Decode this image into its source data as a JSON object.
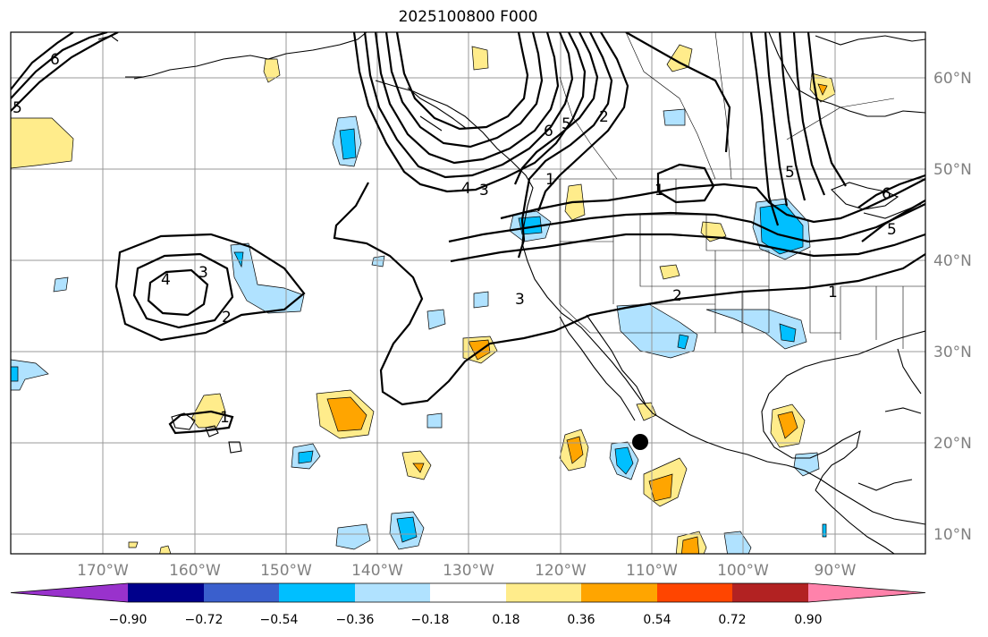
{
  "title": "2025100800 F000",
  "map": {
    "lat_labels": [
      "60°N",
      "50°N",
      "40°N",
      "30°N",
      "20°N",
      "10°N"
    ],
    "lon_labels": [
      "170°W",
      "160°W",
      "150°W",
      "140°W",
      "130°W",
      "120°W",
      "110°W",
      "100°W",
      "90°W"
    ],
    "contour_labels": [
      "6",
      "5",
      "2",
      "4",
      "3",
      "6",
      "5",
      "2",
      "1",
      "1",
      "5",
      "6",
      "4",
      "3",
      "2",
      "1",
      "3",
      "2",
      "1",
      "5"
    ],
    "marker": "black-dot"
  },
  "colorbar": {
    "labels": [
      "−0.90",
      "−0.72",
      "−0.54",
      "−0.36",
      "−0.18",
      "0.18",
      "0.36",
      "0.54",
      "0.72",
      "0.90"
    ],
    "colors": [
      "#9932cc",
      "#00008b",
      "#3a5fcd",
      "#00bfff",
      "#b0e2ff",
      "#ffffff",
      "#ffec8b",
      "#ffa500",
      "#ff4500",
      "#b22222",
      "#ff82ab"
    ]
  }
}
